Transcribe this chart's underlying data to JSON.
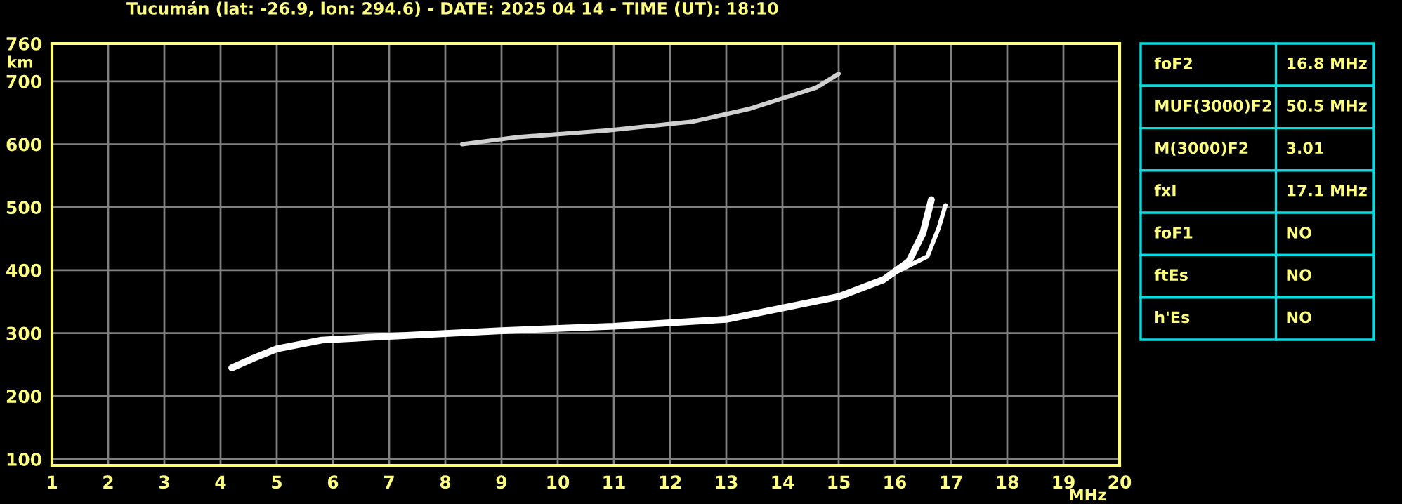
{
  "chart_data": [
    {
      "type": "line",
      "title": "Tucumán (lat: -26.9, lon: 294.6) - DATE: 2025 04 14 - TIME (UT): 18:10",
      "xlabel": "MHz",
      "ylabel": "km",
      "xlim": [
        1,
        20
      ],
      "ylim": [
        90,
        760
      ],
      "xticks": [
        1,
        2,
        3,
        4,
        5,
        6,
        7,
        8,
        9,
        10,
        11,
        12,
        13,
        14,
        15,
        16,
        17,
        18,
        19,
        20
      ],
      "yticks": [
        100,
        200,
        300,
        400,
        500,
        600,
        700,
        760
      ],
      "grid": true,
      "legend": false,
      "marker": "none",
      "line_style": "solid",
      "series": [
        {
          "color": "#ffffff",
          "x": [
            4.2,
            4.58,
            5.0,
            5.8,
            7.0,
            9.0,
            11.0,
            13.0,
            14.0,
            15.0,
            15.8,
            16.25,
            16.5,
            16.65
          ],
          "values": [
            245,
            260,
            275,
            289,
            295,
            304,
            311,
            322,
            340,
            358,
            385,
            414,
            459,
            512
          ]
        },
        {
          "color": "#ffffff",
          "x": [
            16.0,
            16.58,
            16.78,
            16.9
          ],
          "values": [
            396,
            422,
            467,
            503
          ]
        },
        {
          "color": "#d0d0d0",
          "x": [
            8.3,
            9.25,
            10.9,
            12.4,
            13.4,
            14.6,
            15.0
          ],
          "values": [
            600,
            611,
            622,
            636,
            656,
            690,
            712
          ]
        }
      ]
    },
    {
      "type": "other",
      "annotations": [
        "foF2",
        "16.8 MHz",
        "MUF(3000)F2",
        "50.5 MHz",
        "M(3000)F2",
        "3.01",
        "fxI",
        "17.1 MHz",
        "foF1",
        "NO",
        "ftEs",
        "NO",
        "h'Es",
        "NO"
      ]
    }
  ]
}
